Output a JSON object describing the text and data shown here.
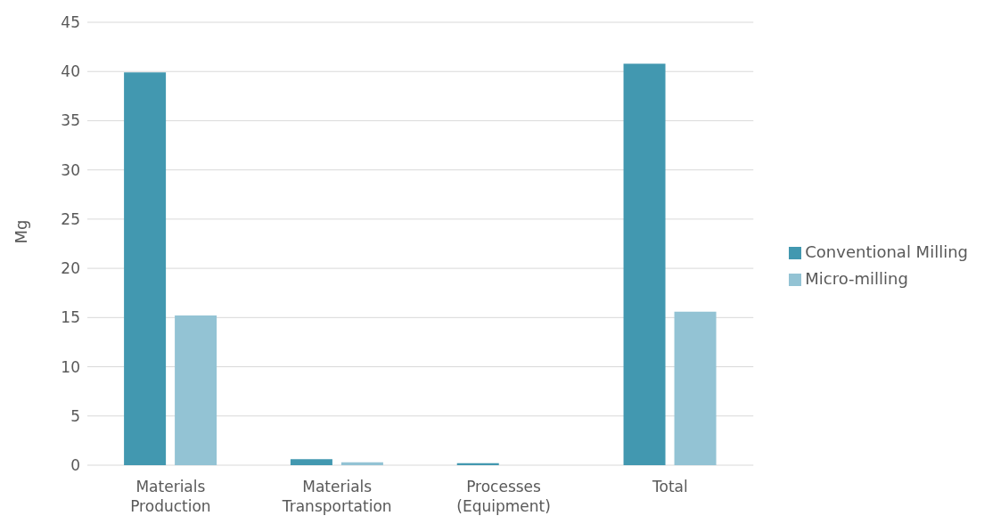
{
  "chart_data": {
    "type": "bar",
    "ylabel": "Mg",
    "categories": [
      "Materials\nProduction",
      "Materials\nTransportation",
      "Processes\n(Equipment)",
      "Total"
    ],
    "series": [
      {
        "name": "Conventional Milling",
        "color": "#4298b0",
        "values": [
          39.9,
          0.6,
          0.2,
          40.8
        ]
      },
      {
        "name": "Micro-milling",
        "color": "#93c3d4",
        "values": [
          15.2,
          0.3,
          0,
          15.6
        ]
      }
    ],
    "ylim": [
      0,
      45
    ],
    "yticks": [
      0,
      5,
      10,
      15,
      20,
      25,
      30,
      35,
      40,
      45
    ],
    "grid": "y",
    "legend": "right"
  }
}
